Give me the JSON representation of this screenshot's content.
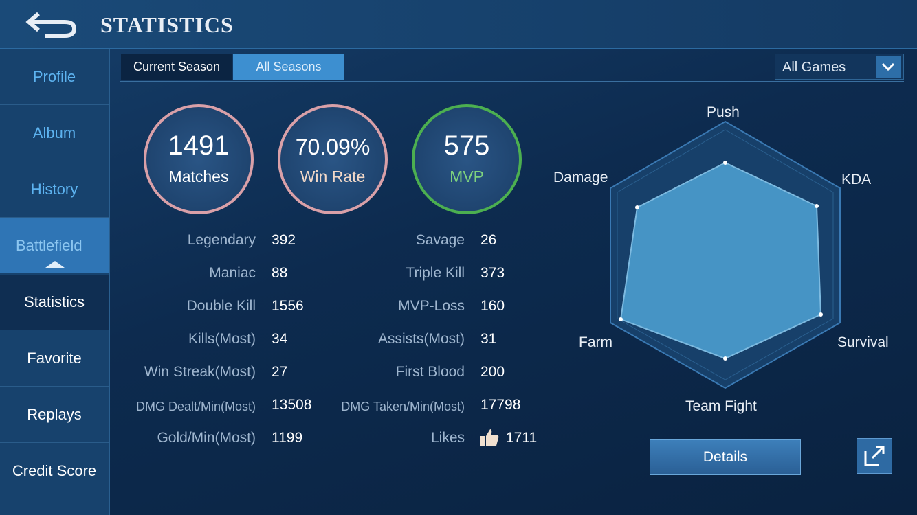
{
  "header": {
    "title": "STATISTICS"
  },
  "sidebar": {
    "items": [
      "Profile",
      "Album",
      "History",
      "Battlefield",
      "Statistics",
      "Favorite",
      "Replays",
      "Credit Score"
    ]
  },
  "tabs": [
    "Current Season",
    "All Seasons"
  ],
  "filter": "All Games",
  "summary": [
    {
      "value": 1491,
      "label": "Matches"
    },
    {
      "value": "70.09%",
      "label": "Win Rate"
    },
    {
      "value": 575,
      "label": "MVP"
    }
  ],
  "stats": {
    "left": [
      [
        "Legendary",
        392
      ],
      [
        "Maniac",
        88
      ],
      [
        "Double Kill",
        1556
      ],
      [
        "Kills(Most)",
        34
      ],
      [
        "Win Streak(Most)",
        27
      ],
      [
        "DMG Dealt/Min(Most)",
        13508
      ],
      [
        "Gold/Min(Most)",
        1199
      ]
    ],
    "right": [
      [
        "Savage",
        26
      ],
      [
        "Triple Kill",
        373
      ],
      [
        "MVP-Loss",
        160
      ],
      [
        "Assists(Most)",
        31
      ],
      [
        "First Blood",
        200
      ],
      [
        "DMG Taken/Min(Most)",
        17798
      ],
      [
        "Likes",
        1711
      ]
    ]
  },
  "radar": {
    "labels": [
      "Push",
      "KDA",
      "Survival",
      "Team Fight",
      "Farm",
      "Damage"
    ]
  },
  "button": "Details"
}
